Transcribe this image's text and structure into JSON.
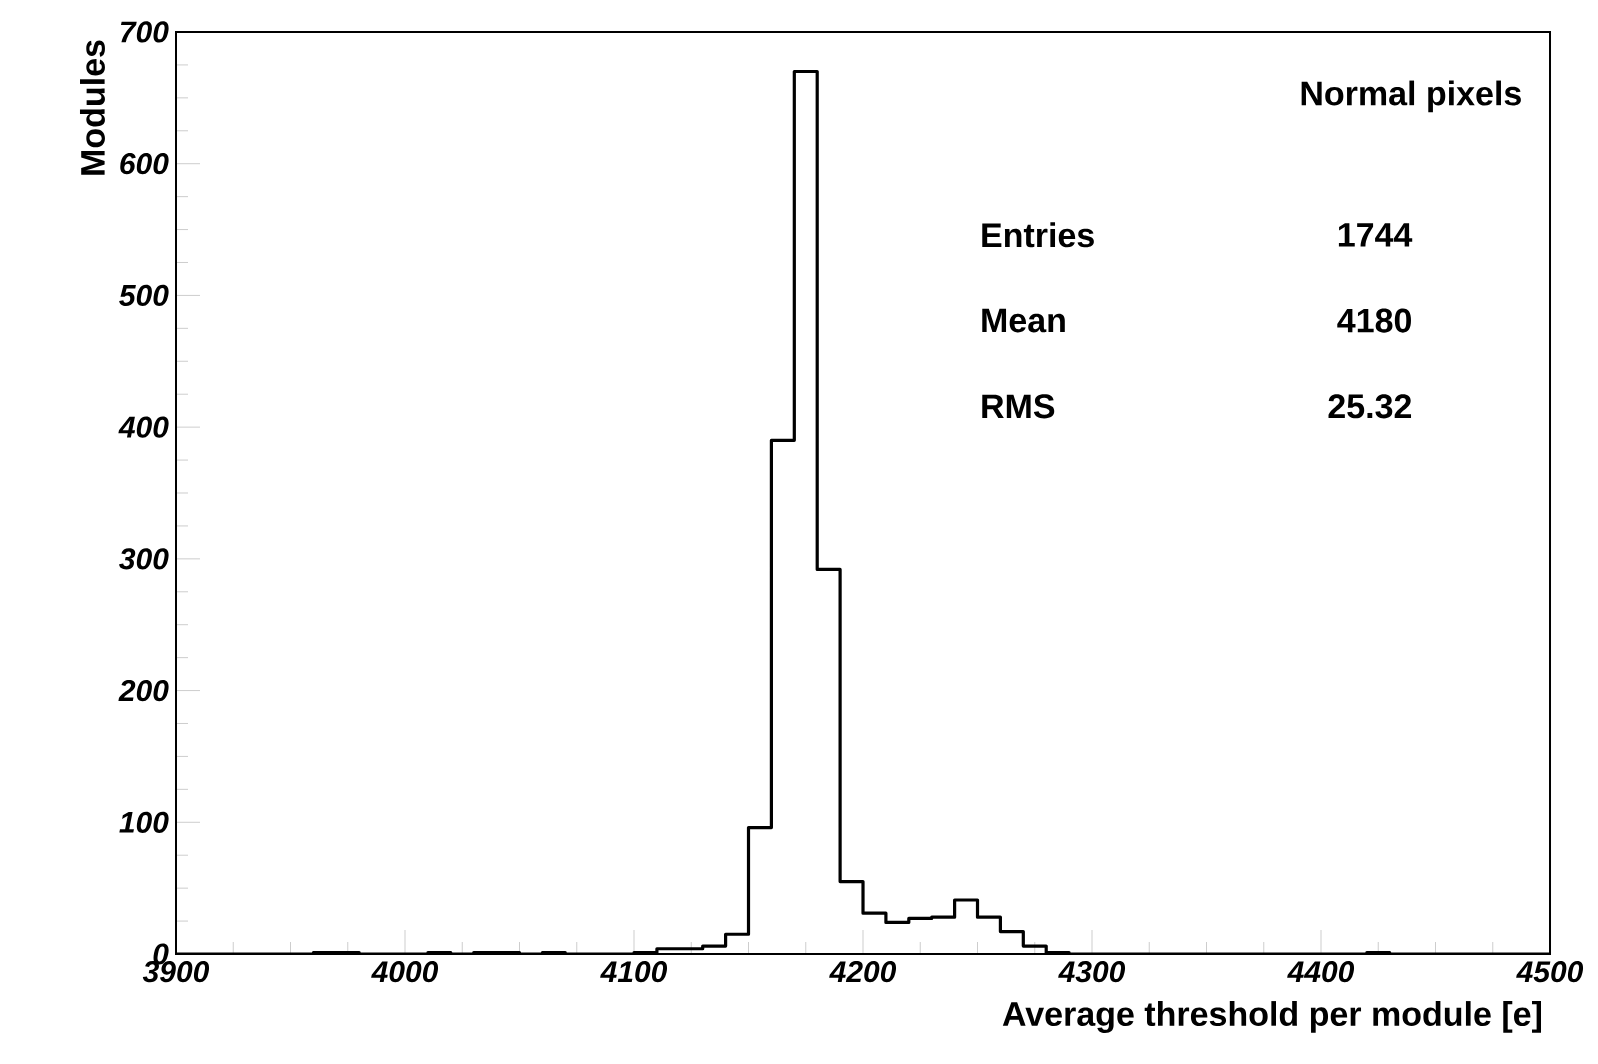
{
  "chart_data": {
    "type": "histogram",
    "xlabel": "Average threshold per module [e]",
    "ylabel": "Modules",
    "bins": [
      3900,
      3910,
      3920,
      3930,
      3940,
      3950,
      3960,
      3970,
      3980,
      3990,
      4000,
      4010,
      4020,
      4030,
      4040,
      4050,
      4060,
      4070,
      4080,
      4090,
      4100,
      4110,
      4120,
      4130,
      4140,
      4150,
      4160,
      4170,
      4180,
      4190,
      4200,
      4210,
      4220,
      4230,
      4240,
      4250,
      4260,
      4270,
      4280,
      4290,
      4300,
      4310,
      4320,
      4330,
      4340,
      4350,
      4360,
      4370,
      4380,
      4390,
      4400,
      4410,
      4420,
      4430,
      4440,
      4450,
      4460,
      4470,
      4480,
      4490,
      4500
    ],
    "values": [
      0,
      0,
      0,
      0,
      0,
      0,
      1,
      1,
      0,
      0,
      0,
      1,
      0,
      1,
      1,
      0,
      1,
      0,
      0,
      0,
      1,
      4,
      4,
      6,
      15,
      96,
      390,
      670,
      292,
      55,
      31,
      24,
      27,
      28,
      41,
      28,
      17,
      6,
      1,
      0,
      0,
      0,
      0,
      0,
      0,
      0,
      0,
      0,
      0,
      0,
      0,
      0,
      1,
      0,
      0,
      0,
      0,
      0,
      0,
      0
    ],
    "color": "#000000",
    "xlim": [
      3900,
      4500
    ],
    "xticks": [
      3900,
      4000,
      4100,
      4200,
      4300,
      4400,
      4500
    ],
    "ylim": [
      0,
      700
    ],
    "yticks": [
      0,
      100,
      200,
      300,
      400,
      500,
      600,
      700
    ],
    "grid": false,
    "annotations": [
      "Normal pixels",
      "Entries",
      "1744",
      "Mean",
      "4180",
      "RMS",
      "25.32"
    ]
  }
}
